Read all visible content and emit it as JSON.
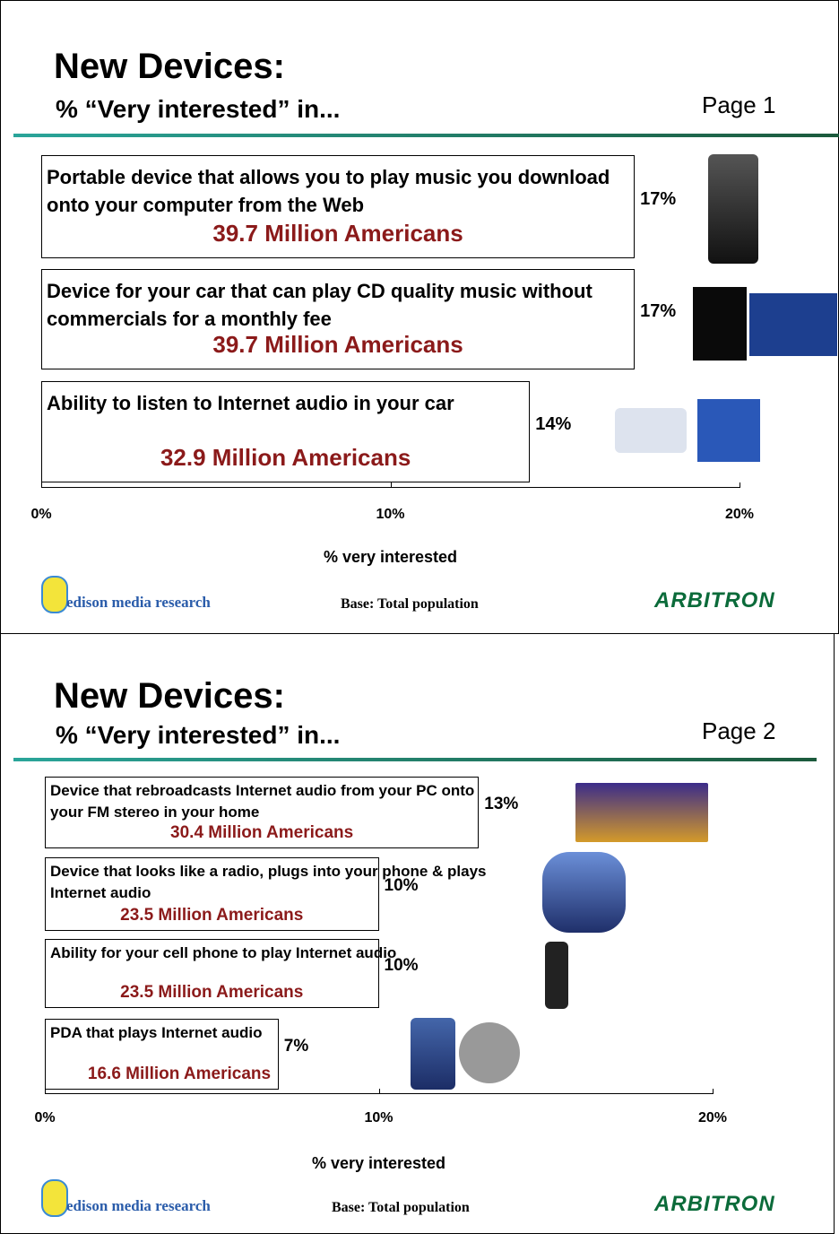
{
  "chart_data": [
    {
      "type": "bar",
      "title": "New Devices:",
      "subtitle": "% “Very interested” in...",
      "page_label": "Page 1",
      "categories": [
        "Portable device that allows you to play music you download onto your computer from the Web",
        "Device for your car that can play CD quality music without commercials for a monthly fee",
        "Ability to listen to Internet audio in your car"
      ],
      "audience": [
        "39.7 Million Americans",
        "39.7 Million Americans",
        "32.9 Million Americans"
      ],
      "values": [
        17,
        17,
        14
      ],
      "value_labels": [
        "17%",
        "17%",
        "14%"
      ],
      "xlim": [
        0,
        20
      ],
      "xticks": [
        {
          "value": 0,
          "label": "0%"
        },
        {
          "value": 10,
          "label": "10%"
        },
        {
          "value": 20,
          "label": "20%"
        }
      ],
      "x_label": "% very interested",
      "footnote": "Base: Total population",
      "logo_left": "edison media research",
      "logo_right": "ARBITRON"
    },
    {
      "type": "bar",
      "title": "New Devices:",
      "subtitle": "% “Very interested” in...",
      "page_label": "Page 2",
      "categories": [
        "Device that rebroadcasts Internet audio from your PC onto your FM stereo in your home",
        "Device that looks like a radio, plugs into your phone & plays Internet audio",
        "Ability for your cell phone to play Internet audio",
        "PDA that plays Internet audio"
      ],
      "audience": [
        "30.4 Million Americans",
        "23.5 Million Americans",
        "23.5 Million Americans",
        "16.6 Million Americans"
      ],
      "values": [
        13,
        10,
        10,
        7
      ],
      "value_labels": [
        "13%",
        "10%",
        "10%",
        "7%"
      ],
      "xlim": [
        0,
        20
      ],
      "xticks": [
        {
          "value": 0,
          "label": "0%"
        },
        {
          "value": 10,
          "label": "10%"
        },
        {
          "value": 20,
          "label": "20%"
        }
      ],
      "x_label": "% very interested",
      "footnote": "Base: Total population",
      "logo_left": "edison media research",
      "logo_right": "ARBITRON"
    }
  ]
}
